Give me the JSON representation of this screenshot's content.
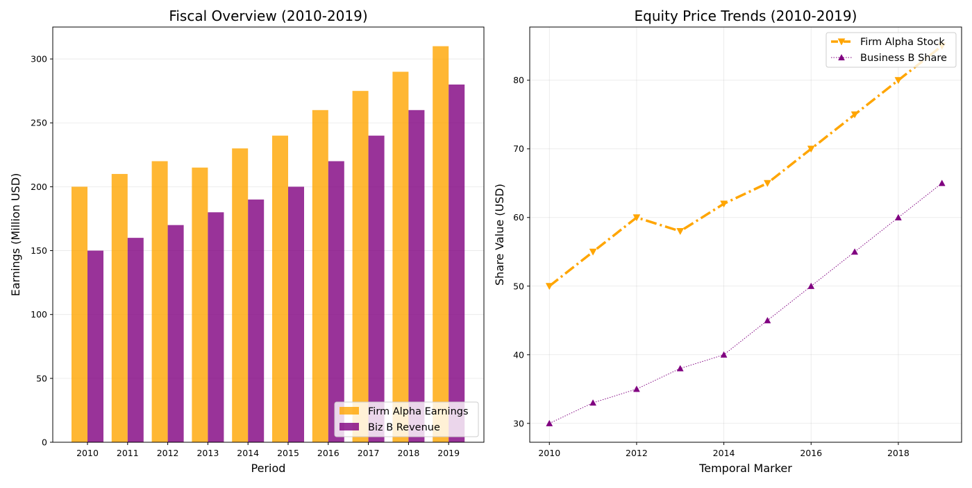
{
  "chart_data": [
    {
      "type": "bar",
      "title": "Fiscal Overview (2010-2019)",
      "xlabel": "Period",
      "ylabel": "Earnings (Million USD)",
      "categories": [
        "2010",
        "2011",
        "2012",
        "2013",
        "2014",
        "2015",
        "2016",
        "2017",
        "2018",
        "2019"
      ],
      "ylim": [
        0,
        325
      ],
      "yticks": [
        0,
        50,
        100,
        150,
        200,
        250,
        300
      ],
      "grid": "y",
      "legend_position": "bottom-right",
      "series": [
        {
          "name": "Firm Alpha Earnings",
          "color": "#FFA500",
          "values": [
            200,
            210,
            220,
            215,
            230,
            240,
            260,
            275,
            290,
            310
          ]
        },
        {
          "name": "Biz B Revenue",
          "color": "#800080",
          "values": [
            150,
            160,
            170,
            180,
            190,
            200,
            220,
            240,
            260,
            280
          ]
        }
      ]
    },
    {
      "type": "line",
      "title": "Equity Price Trends (2010-2019)",
      "xlabel": "Temporal Marker",
      "ylabel": "Share Value (USD)",
      "x": [
        2010,
        2011,
        2012,
        2013,
        2014,
        2015,
        2016,
        2017,
        2018,
        2019
      ],
      "xlim": [
        2009.55,
        2019.45
      ],
      "ylim": [
        27.25,
        87.75
      ],
      "xticks": [
        2010,
        2012,
        2014,
        2016,
        2018
      ],
      "yticks": [
        30,
        40,
        50,
        60,
        70,
        80
      ],
      "grid": "both",
      "legend_position": "top-right",
      "series": [
        {
          "name": "Firm Alpha Stock",
          "color": "#FFA500",
          "marker": "triangle-down",
          "linestyle": "dashdot",
          "values": [
            50,
            55,
            60,
            58,
            62,
            65,
            70,
            75,
            80,
            85
          ]
        },
        {
          "name": "Business B Share",
          "color": "#800080",
          "marker": "triangle-up",
          "linestyle": "dotted",
          "values": [
            30,
            33,
            35,
            38,
            40,
            45,
            50,
            55,
            60,
            65
          ]
        }
      ]
    }
  ]
}
